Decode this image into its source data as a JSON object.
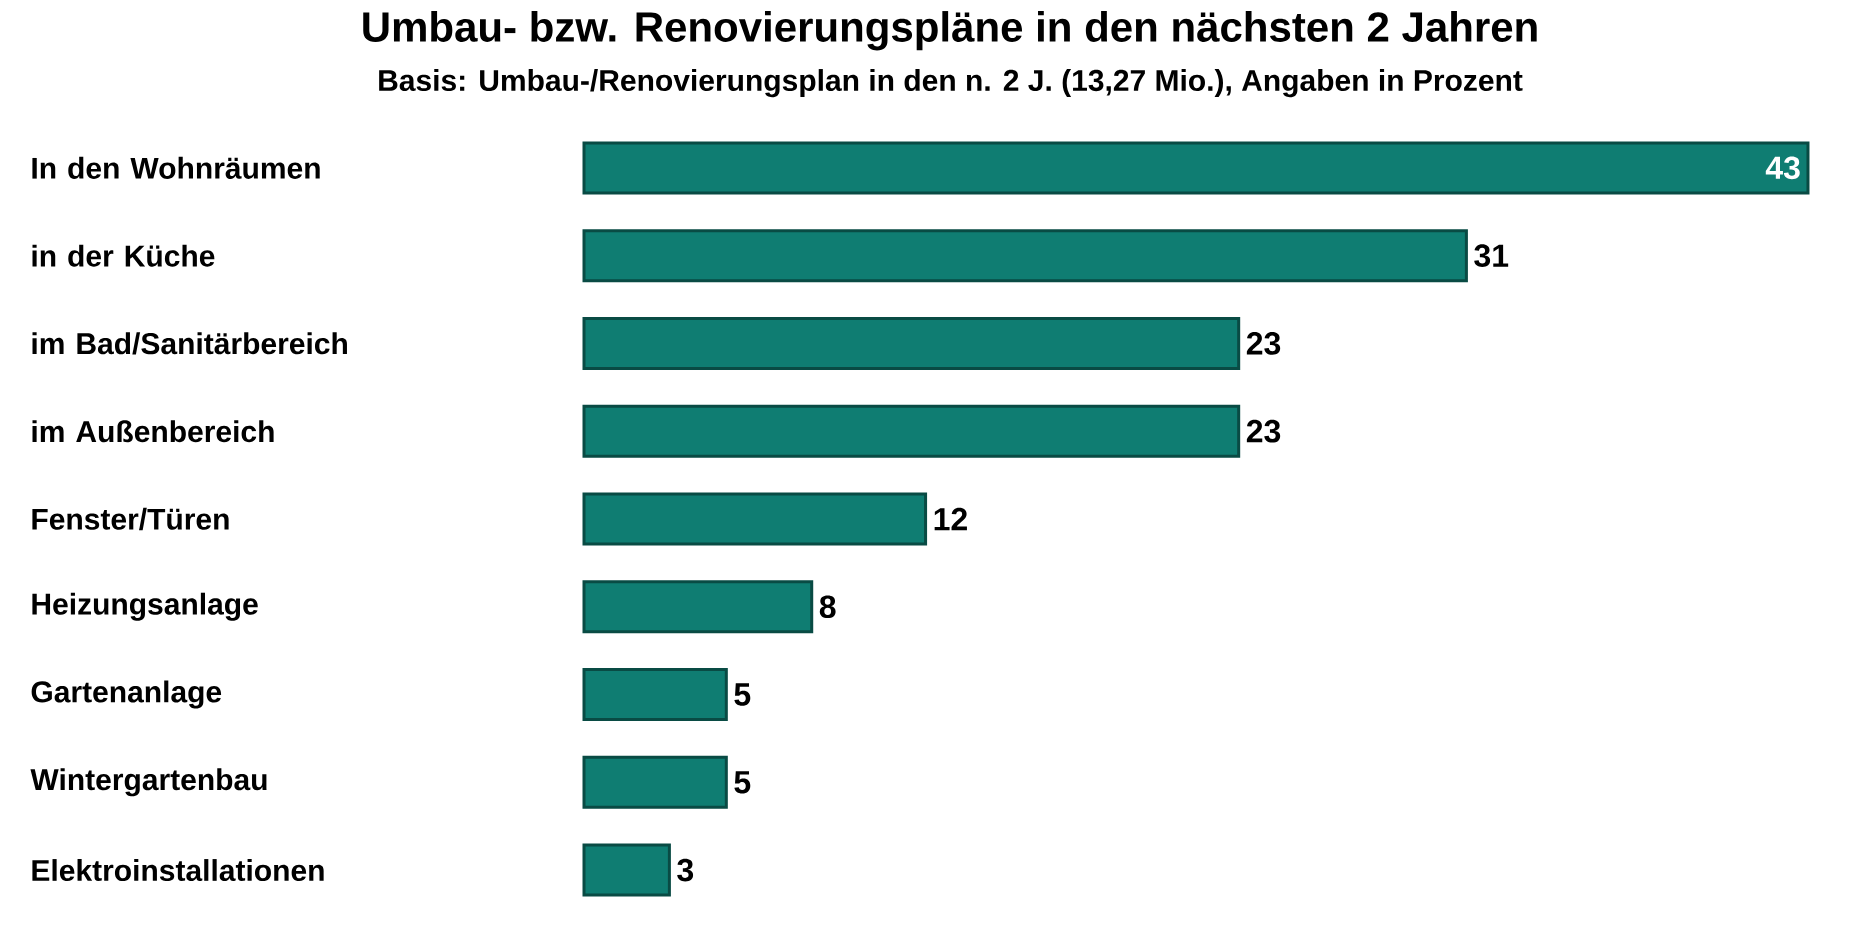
{
  "chart_data": {
    "type": "bar",
    "orientation": "horizontal",
    "title": "Umbau- bzw. Renovierungspläne in den nächsten 2 Jahren",
    "subtitle": "Basis: Umbau-/Renovierungsplan in den n. 2 J. (13,27 Mio.), Angaben in Prozent",
    "categories": [
      "In den Wohnräumen",
      "in der Küche",
      "im Bad/Sanitärbereich",
      "im Außenbereich",
      "Fenster/Türen",
      "Heizungsanlage",
      "Gartenanlage",
      "Wintergartenbau",
      "Elektroinstallationen"
    ],
    "values": [
      43,
      31,
      23,
      23,
      12,
      8,
      5,
      5,
      3
    ],
    "color": "#0f7d72",
    "data_labels": true
  }
}
